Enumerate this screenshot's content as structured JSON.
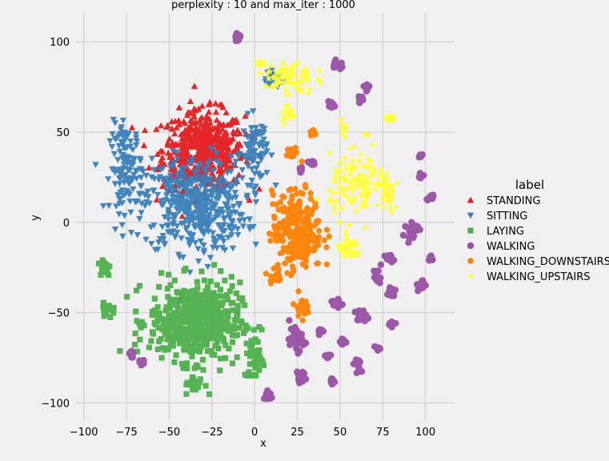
{
  "chart_data": {
    "type": "scatter",
    "title": "perplexity : 10 and max_iter : 1000",
    "xlabel": "x",
    "ylabel": "y",
    "xlim": [
      -105,
      117
    ],
    "ylim": [
      -110,
      116
    ],
    "xticks": [
      -100,
      -75,
      -50,
      -25,
      0,
      25,
      50,
      75,
      100
    ],
    "yticks": [
      -100,
      -50,
      0,
      50,
      100
    ],
    "grid": true,
    "legend_title": "label",
    "legend_position": "right",
    "series": [
      {
        "name": "STANDING",
        "marker": "triangle-up",
        "color": "#e41a1c",
        "clusters": [
          {
            "cx": -30,
            "cy": 40,
            "sx": 20,
            "sy": 18,
            "n": 520
          }
        ]
      },
      {
        "name": "SITTING",
        "marker": "triangle-down",
        "color": "#377eb8",
        "clusters": [
          {
            "cx": -35,
            "cy": 10,
            "sx": 25,
            "sy": 22,
            "n": 480
          },
          {
            "cx": -75,
            "cy": 30,
            "sx": 8,
            "sy": 20,
            "n": 120
          },
          {
            "cx": 0,
            "cy": 40,
            "sx": 6,
            "sy": 15,
            "n": 80
          },
          {
            "cx": 10,
            "cy": 80,
            "sx": 4,
            "sy": 5,
            "n": 20
          }
        ]
      },
      {
        "name": "LAYING",
        "marker": "square",
        "color": "#4daf4a",
        "clusters": [
          {
            "cx": -35,
            "cy": -55,
            "sx": 22,
            "sy": 18,
            "n": 500
          },
          {
            "cx": -88,
            "cy": -25,
            "sx": 3,
            "sy": 4,
            "n": 25
          },
          {
            "cx": -85,
            "cy": -48,
            "sx": 3,
            "sy": 3,
            "n": 20
          },
          {
            "cx": -35,
            "cy": -90,
            "sx": 5,
            "sy": 4,
            "n": 30
          },
          {
            "cx": 0,
            "cy": -75,
            "sx": 5,
            "sy": 10,
            "n": 40
          }
        ]
      },
      {
        "name": "WALKING",
        "marker": "circle",
        "color": "#984ea3",
        "clusters": [
          {
            "cx": -10,
            "cy": 103,
            "sx": 1.5,
            "sy": 2,
            "n": 20
          },
          {
            "cx": 48,
            "cy": 87,
            "sx": 2,
            "sy": 2,
            "n": 20
          },
          {
            "cx": 66,
            "cy": 75,
            "sx": 1.5,
            "sy": 1.5,
            "n": 12
          },
          {
            "cx": 62,
            "cy": 68,
            "sx": 1.5,
            "sy": 1.5,
            "n": 10
          },
          {
            "cx": 45,
            "cy": 65,
            "sx": 2,
            "sy": 1.5,
            "n": 12
          },
          {
            "cx": 33,
            "cy": 33,
            "sx": 2,
            "sy": 1.5,
            "n": 12
          },
          {
            "cx": 27,
            "cy": 29,
            "sx": 1.5,
            "sy": 1.5,
            "n": 8
          },
          {
            "cx": 97,
            "cy": 37,
            "sx": 1.5,
            "sy": 1.5,
            "n": 8
          },
          {
            "cx": 97,
            "cy": 26,
            "sx": 1.5,
            "sy": 1.5,
            "n": 8
          },
          {
            "cx": 103,
            "cy": 14,
            "sx": 2,
            "sy": 1.2,
            "n": 10
          },
          {
            "cx": 92,
            "cy": -4,
            "sx": 3,
            "sy": 4,
            "n": 30
          },
          {
            "cx": 79,
            "cy": -20,
            "sx": 2,
            "sy": 1.5,
            "n": 10
          },
          {
            "cx": 103,
            "cy": -20,
            "sx": 1.5,
            "sy": 1.5,
            "n": 8
          },
          {
            "cx": 72,
            "cy": -30,
            "sx": 2,
            "sy": 4,
            "n": 20
          },
          {
            "cx": 80,
            "cy": -38,
            "sx": 2,
            "sy": 3,
            "n": 15
          },
          {
            "cx": 98,
            "cy": -35,
            "sx": 2,
            "sy": 3,
            "n": 15
          },
          {
            "cx": 48,
            "cy": -45,
            "sx": 3,
            "sy": 2,
            "n": 18
          },
          {
            "cx": 62,
            "cy": -52,
            "sx": 3,
            "sy": 3,
            "n": 20
          },
          {
            "cx": 80,
            "cy": -56,
            "sx": 2,
            "sy": 1.5,
            "n": 10
          },
          {
            "cx": 25,
            "cy": -65,
            "sx": 4,
            "sy": 5,
            "n": 35
          },
          {
            "cx": 39,
            "cy": -61,
            "sx": 1.5,
            "sy": 1.5,
            "n": 8
          },
          {
            "cx": 51,
            "cy": -66,
            "sx": 1.5,
            "sy": 2,
            "n": 10
          },
          {
            "cx": 72,
            "cy": -70,
            "sx": 2,
            "sy": 1.5,
            "n": 10
          },
          {
            "cx": 43,
            "cy": -74,
            "sx": 1.5,
            "sy": 1.5,
            "n": 8
          },
          {
            "cx": 60,
            "cy": -78,
            "sx": 2,
            "sy": 3,
            "n": 15
          },
          {
            "cx": 26,
            "cy": -85,
            "sx": 2,
            "sy": 3,
            "n": 15
          },
          {
            "cx": 45,
            "cy": -88,
            "sx": 1.5,
            "sy": 2,
            "n": 8
          },
          {
            "cx": 8,
            "cy": -96,
            "sx": 2,
            "sy": 3,
            "n": 15
          },
          {
            "cx": -72,
            "cy": -73,
            "sx": 1.5,
            "sy": 2.5,
            "n": 12
          },
          {
            "cx": -66,
            "cy": -77,
            "sx": 1.5,
            "sy": 1.5,
            "n": 8
          }
        ]
      },
      {
        "name": "WALKING_DOWNSTAIRS",
        "marker": "pentagon",
        "color": "#ff7f00",
        "clusters": [
          {
            "cx": 25,
            "cy": -5,
            "sx": 12,
            "sy": 18,
            "n": 260
          },
          {
            "cx": 22,
            "cy": 38,
            "sx": 3,
            "sy": 3,
            "n": 20
          },
          {
            "cx": 34,
            "cy": 50,
            "sx": 1.5,
            "sy": 2.5,
            "n": 10
          },
          {
            "cx": 27,
            "cy": -47,
            "sx": 3,
            "sy": 4,
            "n": 20
          },
          {
            "cx": 12,
            "cy": -30,
            "sx": 3,
            "sy": 3,
            "n": 20
          }
        ]
      },
      {
        "name": "WALKING_UPSTAIRS",
        "marker": "star",
        "color": "#ffff33",
        "clusters": [
          {
            "cx": 20,
            "cy": 80,
            "sx": 12,
            "sy": 8,
            "n": 80
          },
          {
            "cx": 20,
            "cy": 60,
            "sx": 4,
            "sy": 4,
            "n": 20
          },
          {
            "cx": 52,
            "cy": 53,
            "sx": 1.5,
            "sy": 3,
            "n": 12
          },
          {
            "cx": 80,
            "cy": 58,
            "sx": 3,
            "sy": 1.5,
            "n": 15
          },
          {
            "cx": 65,
            "cy": 48,
            "sx": 1,
            "sy": 1,
            "n": 5
          },
          {
            "cx": 62,
            "cy": 20,
            "sx": 15,
            "sy": 14,
            "n": 140
          },
          {
            "cx": 55,
            "cy": -15,
            "sx": 6,
            "sy": 5,
            "n": 40
          },
          {
            "cx": 78,
            "cy": 15,
            "sx": 4,
            "sy": 8,
            "n": 30
          },
          {
            "cx": 3,
            "cy": 88,
            "sx": 2,
            "sy": 2,
            "n": 12
          }
        ]
      }
    ]
  }
}
